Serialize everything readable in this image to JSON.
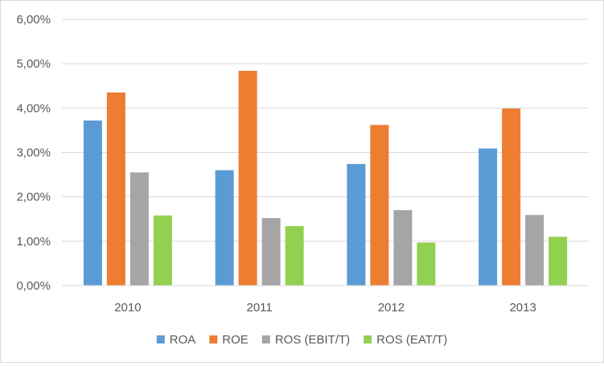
{
  "chart_data": {
    "type": "bar",
    "title": "",
    "xlabel": "",
    "ylabel": "",
    "categories": [
      "2010",
      "2011",
      "2012",
      "2013"
    ],
    "ylim": [
      0,
      6
    ],
    "y_ticks": [
      0,
      1,
      2,
      3,
      4,
      5,
      6
    ],
    "y_tick_labels": [
      "0,00%",
      "1,00%",
      "2,00%",
      "3,00%",
      "4,00%",
      "5,00%",
      "6,00%"
    ],
    "y_unit": "%",
    "grid": true,
    "legend_position": "bottom",
    "series": [
      {
        "name": "ROA",
        "color": "#5b9bd5",
        "values": [
          3.72,
          2.6,
          2.74,
          3.09
        ]
      },
      {
        "name": "ROE",
        "color": "#ed7d31",
        "values": [
          4.35,
          4.84,
          3.62,
          3.99
        ]
      },
      {
        "name": "ROS (EBIT/T)",
        "color": "#a5a5a5",
        "values": [
          2.55,
          1.52,
          1.7,
          1.59
        ]
      },
      {
        "name": "ROS (EAT/T)",
        "color": "#92d050",
        "values": [
          1.58,
          1.34,
          0.97,
          1.1
        ]
      }
    ]
  }
}
